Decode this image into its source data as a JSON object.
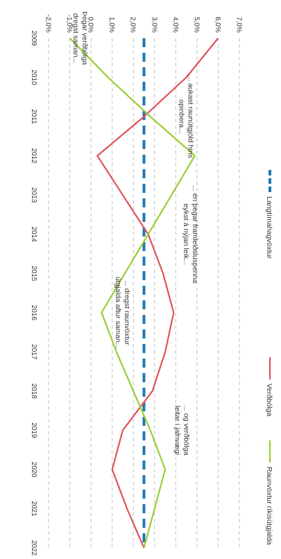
{
  "chart_data": {
    "type": "line",
    "orientation": "rotated-90-clockwise",
    "x": [
      "2009",
      "2010",
      "2011",
      "2012",
      "2013",
      "2014",
      "2015",
      "2016",
      "2017",
      "2018",
      "2019",
      "2020",
      "2021",
      "2022"
    ],
    "y_ticks": [
      "-2,0%",
      "-1,0%",
      "0,0%",
      "1,0%",
      "2,0%",
      "3,0%",
      "4,0%",
      "5,0%",
      "6,0%",
      "7,0%"
    ],
    "ylim": [
      -2,
      7
    ],
    "grid": true,
    "legend_position": "top",
    "series": [
      {
        "name": "Langtímahagvöxtur",
        "color": "#1f77b4",
        "style": "dashed",
        "values": [
          2.5,
          2.5,
          2.5,
          2.5,
          2.5,
          2.5,
          2.5,
          2.5,
          2.5,
          2.5,
          2.5,
          2.5,
          2.5,
          2.5
        ]
      },
      {
        "name": "Verðbólga",
        "color": "#e0505a",
        "style": "solid",
        "values": [
          6.0,
          4.5,
          2.5,
          0.3,
          1.5,
          2.7,
          3.4,
          3.9,
          3.5,
          2.9,
          1.5,
          1.0,
          1.7,
          2.5
        ]
      },
      {
        "name": "Raunvöxtur ríkisútgjalda",
        "color": "#9acd32",
        "style": "solid",
        "values": [
          -1.0,
          0.8,
          2.8,
          4.9,
          3.8,
          2.7,
          1.6,
          0.5,
          1.2,
          2.0,
          2.8,
          3.5,
          3.0,
          2.5
        ]
      }
    ],
    "annotations": [
      {
        "lines": [
          "... aukast raunútgjöld hins",
          "opinbera..."
        ],
        "x": "2011",
        "y": 4.6
      },
      {
        "lines": [
          "... en þegar framleiðsluspenna",
          "eykst á nýjan leik..."
        ],
        "x": "2014",
        "y": 4.8
      },
      {
        "lines": [
          "... og verðbólga",
          "leitar í jafnvægi"
        ],
        "x": "2019",
        "y": 4.4
      },
      {
        "lines": [
          "... dregst raunvöxtur",
          "útgjalda aftur saman..."
        ],
        "x": "2016",
        "y": 1.6
      },
      {
        "lines": [
          "Þegar verðbólga",
          "dregst saman..."
        ],
        "x": "2009",
        "y": -0.4
      }
    ]
  }
}
